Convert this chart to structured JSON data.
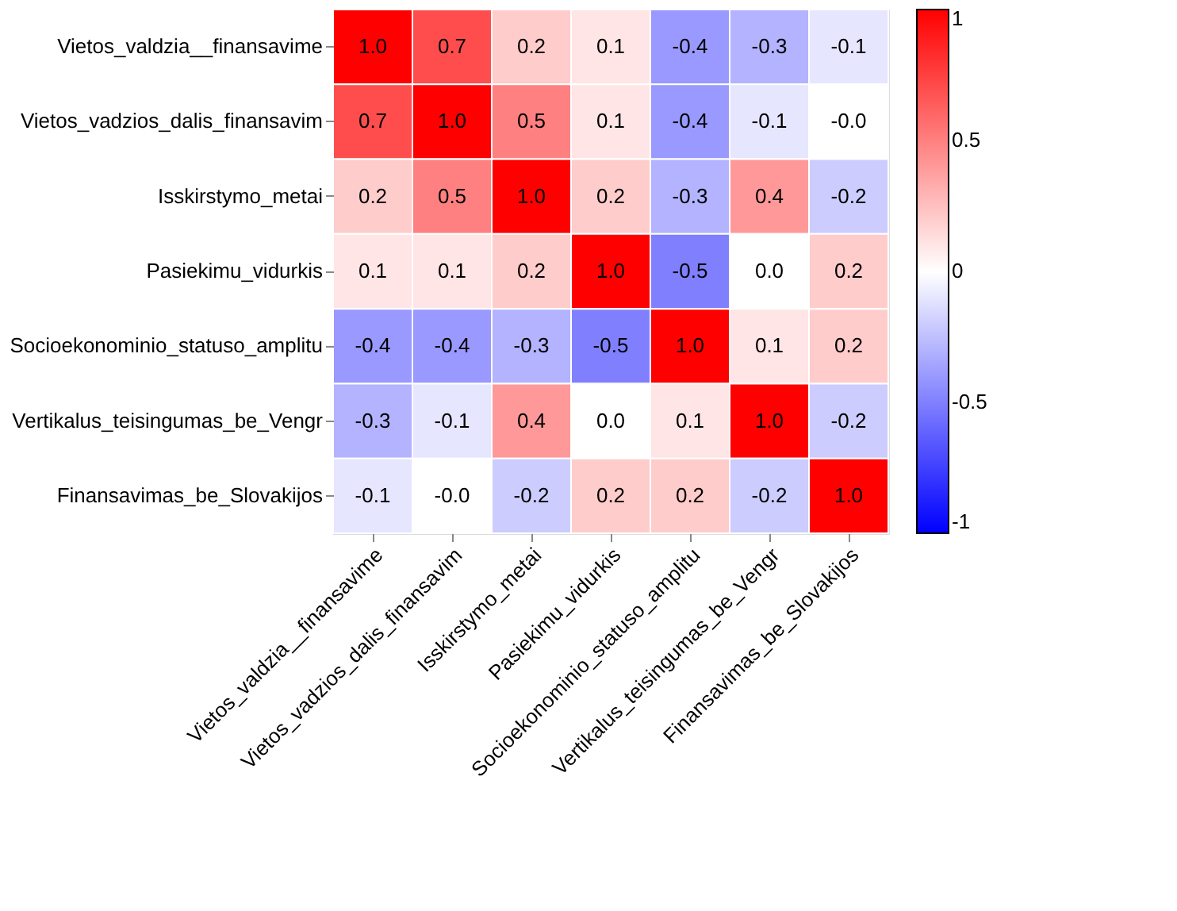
{
  "chart_data": {
    "type": "heatmap",
    "categories": [
      "Vietos_valdzia__finansavime",
      "Vietos_vadzios_dalis_finansavim",
      "Isskirstymo_metai",
      "Pasiekimu_vidurkis",
      "Socioekonominio_statuso_amplitu",
      "Vertikalus_teisingumas_be_Vengr",
      "Finansavimas_be_Slovakijos"
    ],
    "y_categories": [
      "Vietos_valdzia__finansavime",
      "Vietos_vadzios_dalis_finansavim",
      "Isskirstymo_metai",
      "Pasiekimu_vidurkis",
      "Socioekonominio_statuso_amplitu",
      "Vertikalus_teisingumas_be_Vengr",
      "Finansavimas_be_Slovakijos"
    ],
    "cells": [
      [
        1.0,
        0.7,
        0.2,
        0.1,
        -0.4,
        -0.3,
        -0.1
      ],
      [
        0.7,
        1.0,
        0.5,
        0.1,
        -0.4,
        -0.1,
        -0.0
      ],
      [
        0.2,
        0.5,
        1.0,
        0.2,
        -0.3,
        0.4,
        -0.2
      ],
      [
        0.1,
        0.1,
        0.2,
        1.0,
        -0.5,
        0.0,
        0.2
      ],
      [
        -0.4,
        -0.4,
        -0.3,
        -0.5,
        1.0,
        0.1,
        0.2
      ],
      [
        -0.3,
        -0.1,
        0.4,
        0.0,
        0.1,
        1.0,
        -0.2
      ],
      [
        -0.1,
        -0.0,
        -0.2,
        0.2,
        0.2,
        -0.2,
        1.0
      ]
    ],
    "cell_labels": [
      [
        "1.0",
        "0.7",
        "0.2",
        "0.1",
        "-0.4",
        "-0.3",
        "-0.1"
      ],
      [
        "0.7",
        "1.0",
        "0.5",
        "0.1",
        "-0.4",
        "-0.1",
        "-0.0"
      ],
      [
        "0.2",
        "0.5",
        "1.0",
        "0.2",
        "-0.3",
        "0.4",
        "-0.2"
      ],
      [
        "0.1",
        "0.1",
        "0.2",
        "1.0",
        "-0.5",
        "0.0",
        "0.2"
      ],
      [
        "-0.4",
        "-0.4",
        "-0.3",
        "-0.5",
        "1.0",
        "0.1",
        "0.2"
      ],
      [
        "-0.3",
        "-0.1",
        "0.4",
        "0.0",
        "0.1",
        "1.0",
        "-0.2"
      ],
      [
        "-0.1",
        "-0.0",
        "-0.2",
        "0.2",
        "0.2",
        "-0.2",
        "1.0"
      ]
    ],
    "clim": [
      -1,
      1
    ],
    "cticks": [
      -1,
      -0.5,
      0,
      0.5,
      1
    ],
    "colors": [
      "#0000ff",
      "#ffffff",
      "#ff0000"
    ]
  }
}
